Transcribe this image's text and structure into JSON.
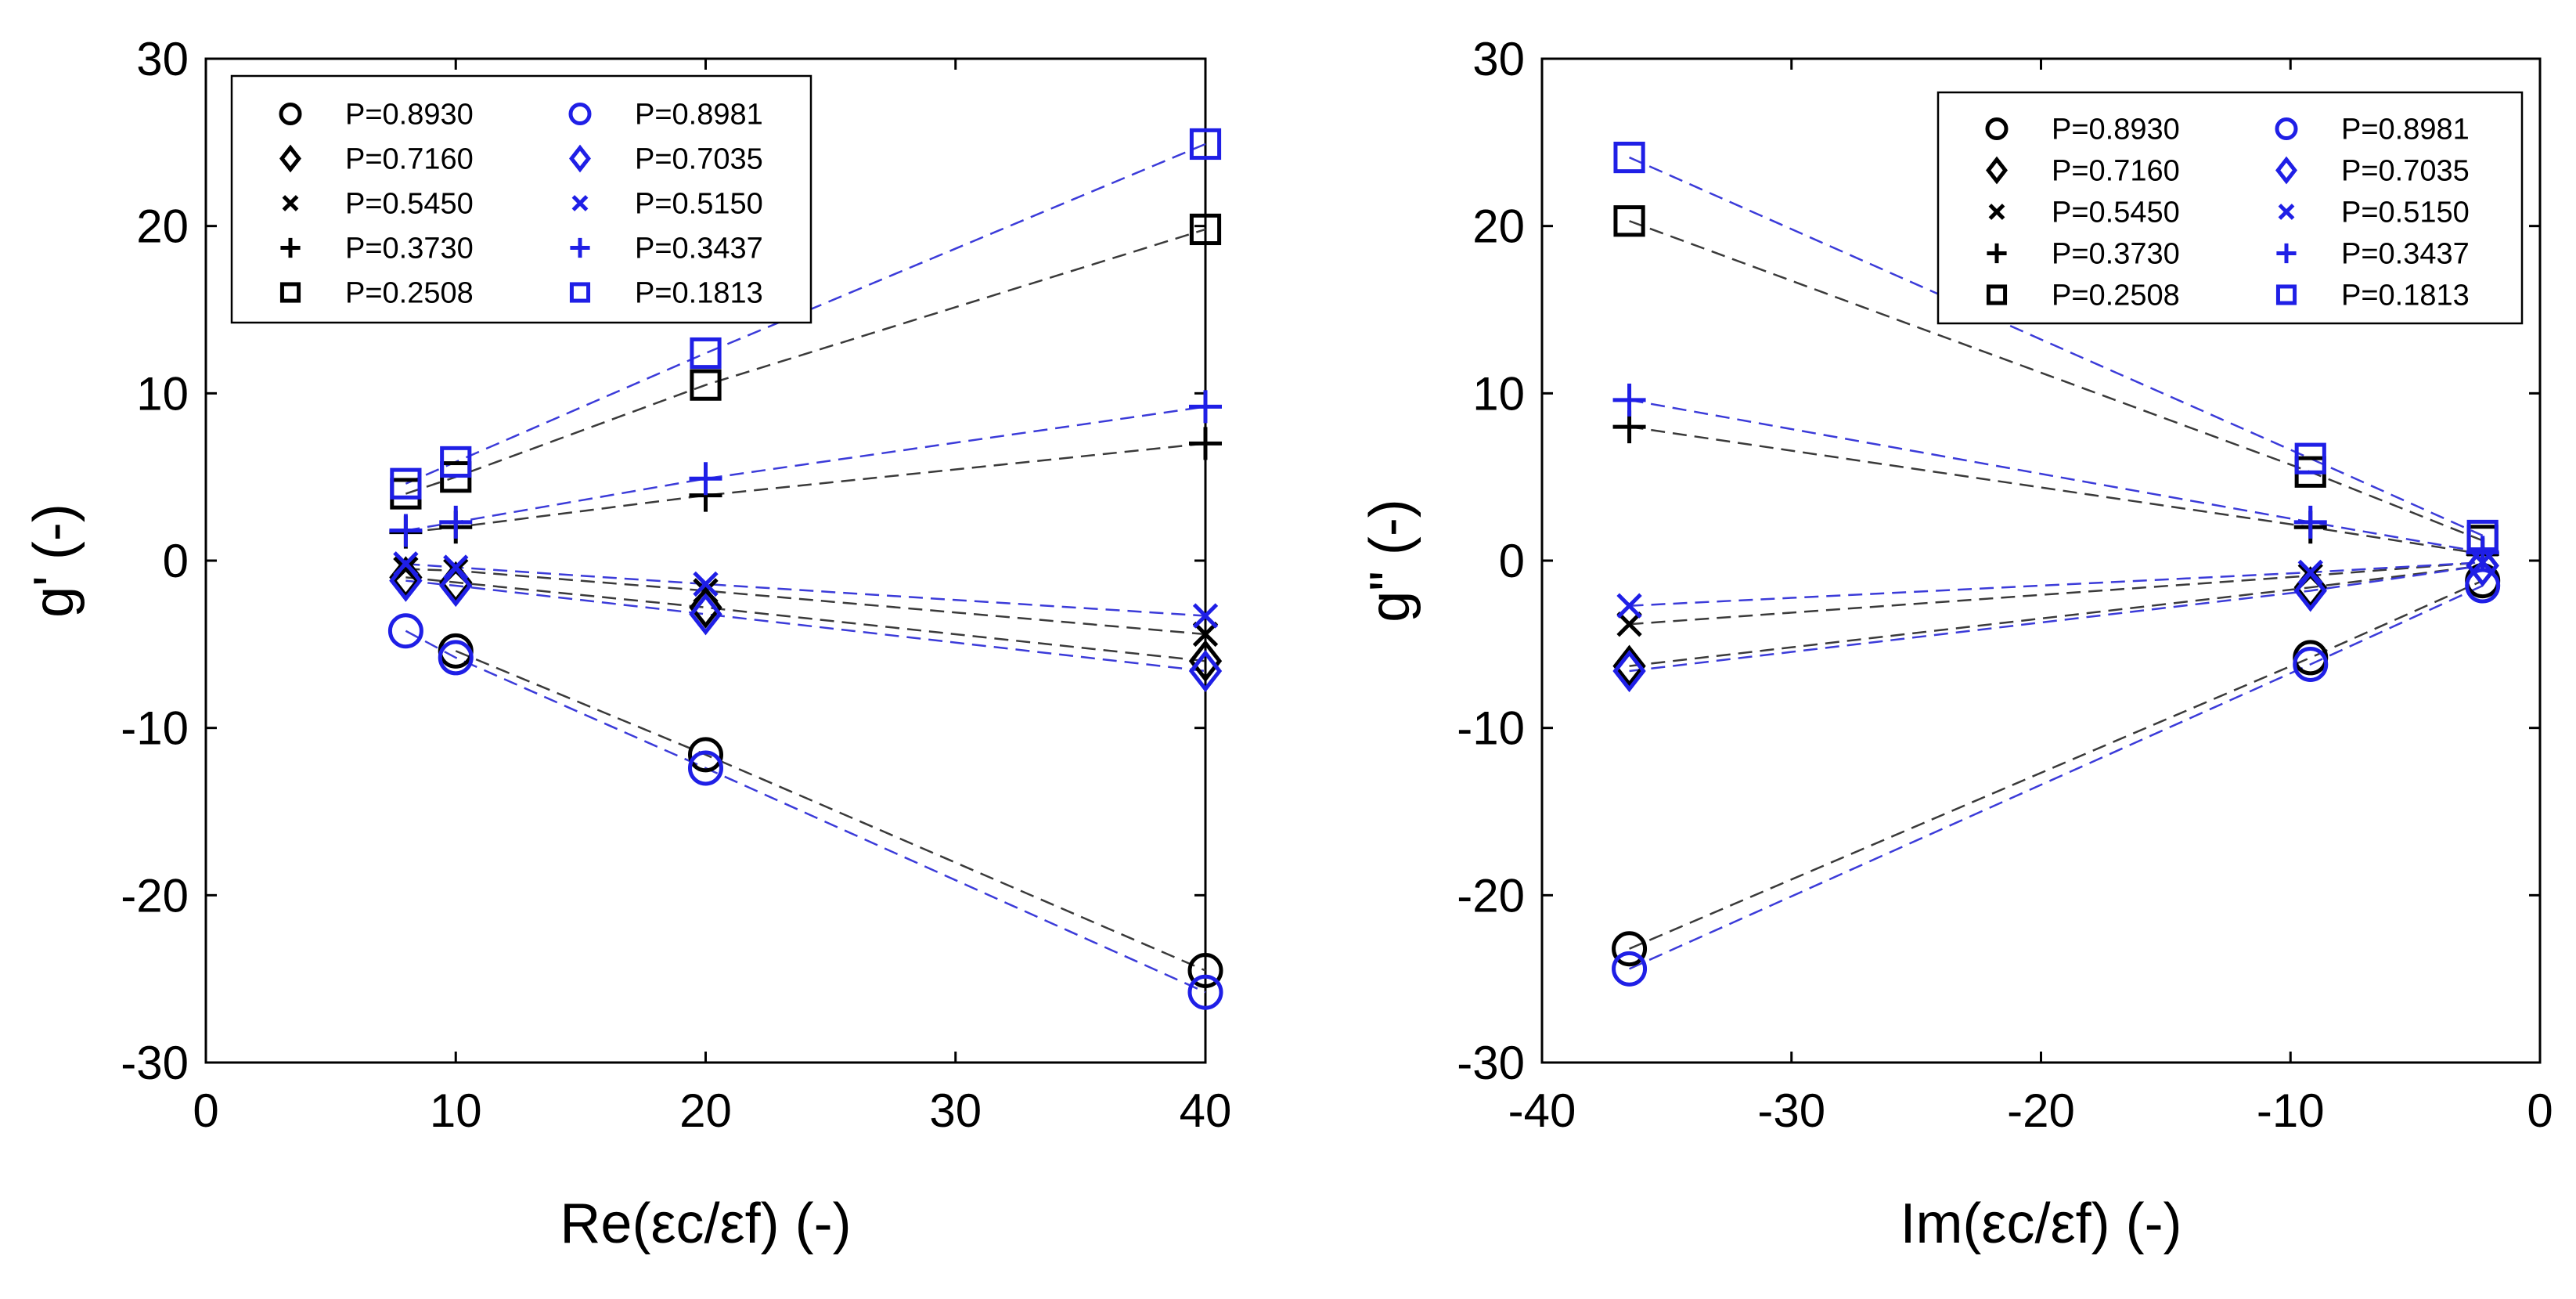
{
  "colors": {
    "black_series": "#000000",
    "blue_series": "#1f1fe6",
    "black_line": "#3a3a3a",
    "blue_line": "#3b3bd9"
  },
  "chart_data": [
    {
      "type": "scatter",
      "id": "left",
      "title": "",
      "xlabel": "Re(εc/εf) (-)",
      "ylabel": "g' (-)",
      "xlim": [
        0,
        40
      ],
      "ylim": [
        -30,
        30
      ],
      "xticks": [
        0,
        10,
        20,
        30,
        40
      ],
      "yticks": [
        -30,
        -20,
        -10,
        0,
        10,
        20,
        30
      ],
      "xtick_labels": [
        "0",
        "10",
        "20",
        "30",
        "40"
      ],
      "ytick_labels": [
        "-30",
        "-20",
        "-10",
        "0",
        "10",
        "20",
        "30"
      ],
      "grid": false,
      "legend_position": "top-left",
      "series": [
        {
          "name": "P=0.8930",
          "marker": "circle",
          "color": "black",
          "x": [
            10,
            20,
            40
          ],
          "y": [
            -5.4,
            -11.6,
            -24.5
          ]
        },
        {
          "name": "P=0.7160",
          "marker": "diamond",
          "color": "black",
          "x": [
            8,
            10,
            20,
            40
          ],
          "y": [
            -1.0,
            -1.3,
            -2.8,
            -6.0
          ]
        },
        {
          "name": "P=0.5450",
          "marker": "x",
          "color": "black",
          "x": [
            8,
            10,
            20,
            40
          ],
          "y": [
            -0.5,
            -0.6,
            -1.8,
            -4.4
          ]
        },
        {
          "name": "P=0.3730",
          "marker": "plus",
          "color": "black",
          "x": [
            8,
            10,
            20,
            40
          ],
          "y": [
            1.7,
            2.0,
            3.9,
            7.0
          ]
        },
        {
          "name": "P=0.2508",
          "marker": "square",
          "color": "black",
          "x": [
            8,
            10,
            20,
            40
          ],
          "y": [
            4.0,
            5.0,
            10.5,
            19.8
          ]
        },
        {
          "name": "P=0.8981",
          "marker": "circle",
          "color": "blue",
          "x": [
            8,
            10,
            20,
            40
          ],
          "y": [
            -4.2,
            -5.8,
            -12.4,
            -25.8
          ]
        },
        {
          "name": "P=0.7035",
          "marker": "diamond",
          "color": "blue",
          "x": [
            8,
            10,
            20,
            40
          ],
          "y": [
            -1.2,
            -1.5,
            -3.2,
            -6.6
          ]
        },
        {
          "name": "P=0.5150",
          "marker": "x",
          "color": "blue",
          "x": [
            8,
            10,
            20,
            40
          ],
          "y": [
            -0.2,
            -0.4,
            -1.4,
            -3.3
          ]
        },
        {
          "name": "P=0.3437",
          "marker": "plus",
          "color": "blue",
          "x": [
            8,
            10,
            20,
            40
          ],
          "y": [
            1.8,
            2.3,
            4.9,
            9.2
          ]
        },
        {
          "name": "P=0.1813",
          "marker": "square",
          "color": "blue",
          "x": [
            8,
            10,
            20,
            40
          ],
          "y": [
            4.6,
            5.9,
            12.4,
            24.9
          ]
        }
      ]
    },
    {
      "type": "scatter",
      "id": "right",
      "title": "",
      "xlabel": "Im(εc/εf) (-)",
      "ylabel": "g\" (-)",
      "xlim": [
        -40,
        0
      ],
      "ylim": [
        -30,
        30
      ],
      "xticks": [
        -40,
        -30,
        -20,
        -10,
        0
      ],
      "yticks": [
        -30,
        -20,
        -10,
        0,
        10,
        20,
        30
      ],
      "xtick_labels": [
        "-40",
        "-30",
        "-20",
        "-10",
        "0"
      ],
      "ytick_labels": [
        "-30",
        "-20",
        "-10",
        "0",
        "10",
        "20",
        "30"
      ],
      "grid": false,
      "legend_position": "top-right",
      "series": [
        {
          "name": "P=0.8930",
          "marker": "circle",
          "color": "black",
          "x": [
            -36.5,
            -9.2,
            -2.3
          ],
          "y": [
            -23.2,
            -5.8,
            -1.2
          ]
        },
        {
          "name": "P=0.7160",
          "marker": "diamond",
          "color": "black",
          "x": [
            -36.5,
            -9.2,
            -2.3
          ],
          "y": [
            -6.3,
            -1.6,
            -0.3
          ]
        },
        {
          "name": "P=0.5450",
          "marker": "x",
          "color": "black",
          "x": [
            -36.5,
            -9.2,
            -2.3
          ],
          "y": [
            -3.8,
            -0.9,
            -0.1
          ]
        },
        {
          "name": "P=0.3730",
          "marker": "plus",
          "color": "black",
          "x": [
            -36.5,
            -9.2,
            -2.3
          ],
          "y": [
            8.0,
            2.0,
            0.4
          ]
        },
        {
          "name": "P=0.2508",
          "marker": "square",
          "color": "black",
          "x": [
            -36.5,
            -9.2,
            -2.3
          ],
          "y": [
            20.3,
            5.3,
            1.2
          ]
        },
        {
          "name": "P=0.8981",
          "marker": "circle",
          "color": "blue",
          "x": [
            -36.5,
            -9.2,
            -2.3
          ],
          "y": [
            -24.4,
            -6.2,
            -1.5
          ]
        },
        {
          "name": "P=0.7035",
          "marker": "diamond",
          "color": "blue",
          "x": [
            -36.5,
            -9.2,
            -2.3
          ],
          "y": [
            -6.6,
            -1.8,
            -0.3
          ]
        },
        {
          "name": "P=0.5150",
          "marker": "x",
          "color": "blue",
          "x": [
            -36.5,
            -9.2,
            -2.3
          ],
          "y": [
            -2.7,
            -0.7,
            -0.1
          ]
        },
        {
          "name": "P=0.3437",
          "marker": "plus",
          "color": "blue",
          "x": [
            -36.5,
            -9.2,
            -2.3
          ],
          "y": [
            9.6,
            2.3,
            0.5
          ]
        },
        {
          "name": "P=0.1813",
          "marker": "square",
          "color": "blue",
          "x": [
            -36.5,
            -9.2,
            -2.3
          ],
          "y": [
            24.1,
            6.1,
            1.5
          ]
        }
      ]
    }
  ]
}
